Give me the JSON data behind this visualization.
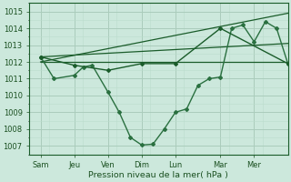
{
  "xlabel": "Pression niveau de la mer( hPa )",
  "ylim": [
    1006.5,
    1015.5
  ],
  "yticks": [
    1007,
    1008,
    1009,
    1010,
    1011,
    1012,
    1013,
    1014,
    1015
  ],
  "bg_color": "#cce8dc",
  "grid_major_color": "#aaccbb",
  "grid_minor_color": "#bbddcc",
  "line_dark": "#1a5c2a",
  "line_mid": "#2a7040",
  "x_day_labels": [
    "Sam",
    "Jeu",
    "Ven",
    "Dim",
    "Lun",
    "Mar",
    "Mer"
  ],
  "x_day_positions": [
    0.5,
    2.0,
    3.5,
    5.0,
    6.5,
    8.5,
    10.0
  ],
  "xlim": [
    0,
    11.5
  ],
  "series_main_x": [
    0.5,
    1.1,
    2.0,
    2.4,
    2.8,
    3.5,
    4.0,
    4.5,
    5.0,
    5.5,
    6.0,
    6.5,
    7.0,
    7.5,
    8.0,
    8.5,
    9.0,
    9.5,
    10.0,
    10.5,
    11.0,
    11.5
  ],
  "series_main_y": [
    1012.3,
    1011.0,
    1011.2,
    1011.7,
    1011.8,
    1010.2,
    1009.0,
    1007.5,
    1007.05,
    1007.1,
    1008.0,
    1009.0,
    1009.2,
    1010.6,
    1011.0,
    1011.1,
    1014.0,
    1014.2,
    1013.2,
    1014.4,
    1014.0,
    1011.9
  ],
  "series2_x": [
    0.5,
    2.0,
    3.5,
    5.0,
    6.5,
    8.5,
    11.5
  ],
  "series2_y": [
    1012.3,
    1011.8,
    1011.5,
    1011.9,
    1011.9,
    1014.0,
    1011.9
  ],
  "flat_line_x": [
    0.5,
    11.5
  ],
  "flat_line_y": [
    1012.0,
    1012.0
  ],
  "trend1_x": [
    0.5,
    11.5
  ],
  "trend1_y": [
    1012.3,
    1013.1
  ],
  "trend2_x": [
    0.5,
    11.5
  ],
  "trend2_y": [
    1012.0,
    1014.9
  ]
}
